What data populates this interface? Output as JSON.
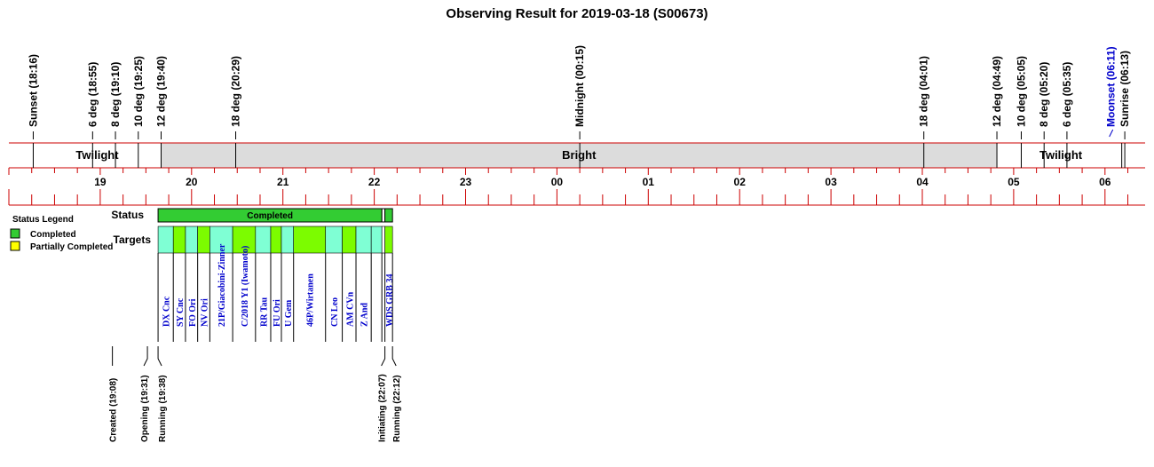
{
  "chart_data": {
    "type": "timeline",
    "title": "Observing Result for 2019-03-18 (S00673)",
    "time_range": [
      "18:00",
      "06:30"
    ],
    "hour_ticks": [
      "19",
      "20",
      "21",
      "22",
      "23",
      "00",
      "01",
      "02",
      "03",
      "04",
      "05",
      "06"
    ],
    "sky_events": [
      {
        "label": "Sunset (18:16)",
        "time": "18:16"
      },
      {
        "label": "6 deg (18:55)",
        "time": "18:55"
      },
      {
        "label": "8 deg (19:10)",
        "time": "19:10"
      },
      {
        "label": "10 deg (19:25)",
        "time": "19:25"
      },
      {
        "label": "12 deg (19:40)",
        "time": "19:40"
      },
      {
        "label": "18 deg (20:29)",
        "time": "20:29"
      },
      {
        "label": "Midnight (00:15)",
        "time": "00:15"
      },
      {
        "label": "18 deg (04:01)",
        "time": "04:01"
      },
      {
        "label": "12 deg (04:49)",
        "time": "04:49"
      },
      {
        "label": "10 deg (05:05)",
        "time": "05:05"
      },
      {
        "label": "8 deg (05:20)",
        "time": "05:20"
      },
      {
        "label": "6 deg (05:35)",
        "time": "05:35"
      },
      {
        "label": "Moonset (06:11)",
        "time": "06:11",
        "color": "#0000cc"
      },
      {
        "label": "Sunrise (06:13)",
        "time": "06:13"
      }
    ],
    "bands": [
      {
        "label": "Twilight",
        "start": "18:16",
        "end": "19:40",
        "color": "#ffffff"
      },
      {
        "label": "Bright",
        "start": "19:40",
        "end": "04:49",
        "color": "#dcdcdc"
      },
      {
        "label": "Twilight",
        "start": "04:49",
        "end": "06:13",
        "color": "#ffffff"
      }
    ],
    "row_labels": {
      "status": "Status",
      "targets": "Targets"
    },
    "status_segments": [
      {
        "label": "Completed",
        "start": "19:38",
        "end": "22:05",
        "color": "#33cc33"
      },
      {
        "label": "",
        "start": "22:05",
        "end": "22:07",
        "color": "#ffffff"
      },
      {
        "label": "",
        "start": "22:07",
        "end": "22:12",
        "color": "#33cc33"
      }
    ],
    "targets": [
      {
        "name": "DX Cnc",
        "start": "19:38",
        "end": "19:48",
        "color": "#7fffd4"
      },
      {
        "name": "SY Cnc",
        "start": "19:48",
        "end": "19:56",
        "color": "#7cfc00"
      },
      {
        "name": "FO Ori",
        "start": "19:56",
        "end": "20:04",
        "color": "#7fffd4"
      },
      {
        "name": "NV Ori",
        "start": "20:04",
        "end": "20:12",
        "color": "#7cfc00"
      },
      {
        "name": "21P/Giacobini-Zinner",
        "start": "20:12",
        "end": "20:27",
        "color": "#7fffd4"
      },
      {
        "name": "C/2018 Y1 (Iwamoto)",
        "start": "20:27",
        "end": "20:42",
        "color": "#7cfc00"
      },
      {
        "name": "RR Tau",
        "start": "20:42",
        "end": "20:52",
        "color": "#7fffd4"
      },
      {
        "name": "FU Ori",
        "start": "20:52",
        "end": "20:59",
        "color": "#7cfc00"
      },
      {
        "name": "U Gem",
        "start": "20:59",
        "end": "21:07",
        "color": "#7fffd4"
      },
      {
        "name": "46P/Wirtanen",
        "start": "21:07",
        "end": "21:28",
        "color": "#7cfc00"
      },
      {
        "name": "CN Leo",
        "start": "21:28",
        "end": "21:39",
        "color": "#7fffd4"
      },
      {
        "name": "AM CVn",
        "start": "21:39",
        "end": "21:48",
        "color": "#7cfc00"
      },
      {
        "name": "Z And",
        "start": "21:48",
        "end": "21:58",
        "color": "#7fffd4"
      },
      {
        "name": "",
        "start": "21:58",
        "end": "22:05",
        "color": "#7fffd4"
      },
      {
        "name": "",
        "start": "22:05",
        "end": "22:07",
        "color": "#ffffff"
      },
      {
        "name": "WDS GRB 34",
        "start": "22:07",
        "end": "22:12",
        "color": "#7cfc00"
      }
    ],
    "observatory_events": [
      {
        "label": "Created (19:08)",
        "time": "19:08"
      },
      {
        "label": "Opening (19:31)",
        "time": "19:31"
      },
      {
        "label": "Running (19:38)",
        "time": "19:38"
      },
      {
        "label": "Initiating (22:07)",
        "time": "22:07"
      },
      {
        "label": "Running (22:12)",
        "time": "22:12"
      }
    ],
    "legend": {
      "title": "Status Legend",
      "items": [
        {
          "label": "Completed",
          "color": "#33cc33"
        },
        {
          "label": "Partially Completed",
          "color": "#ffff00"
        }
      ]
    }
  }
}
